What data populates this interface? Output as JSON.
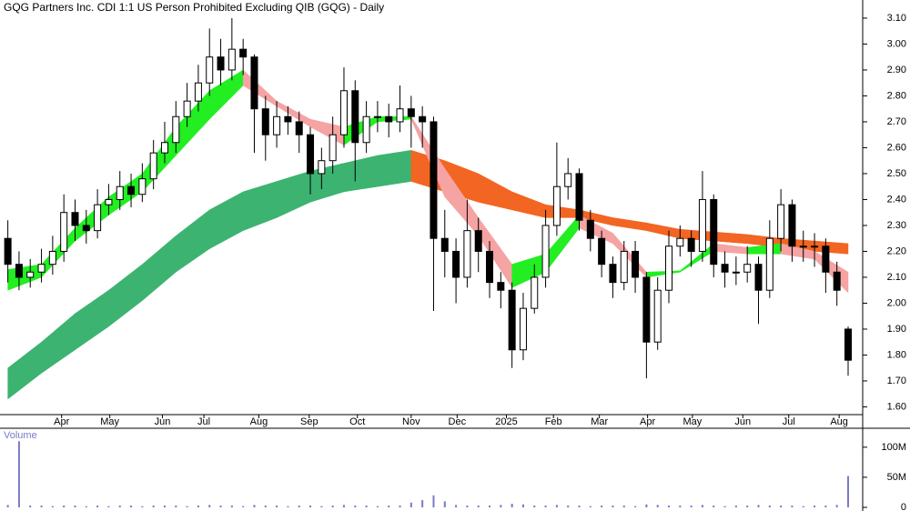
{
  "chart_data": [
    {
      "type": "candlestick",
      "title": "GQG Partners Inc. CDI 1:1 US Person Prohibited Excluding QIB (GQG) - Daily",
      "x": [
        0,
        1,
        2,
        3,
        4,
        5,
        6,
        7,
        8,
        9,
        10,
        11,
        12,
        13,
        14,
        15,
        16,
        17,
        18,
        19,
        20,
        21,
        22,
        23,
        24,
        25,
        26,
        27,
        28,
        29,
        30,
        31,
        32,
        33,
        34,
        35,
        36,
        37,
        38,
        39,
        40,
        41,
        42,
        43,
        44,
        45,
        46,
        47,
        48,
        49,
        50,
        51,
        52,
        53,
        54,
        55,
        56,
        57,
        58,
        59,
        60,
        61,
        62,
        63,
        64,
        65,
        66,
        67,
        68,
        69,
        70,
        71,
        72,
        73,
        74,
        75
      ],
      "open": [
        2.25,
        2.15,
        2.1,
        2.12,
        2.15,
        2.2,
        2.35,
        2.3,
        2.28,
        2.38,
        2.4,
        2.45,
        2.42,
        2.48,
        2.58,
        2.62,
        2.72,
        2.78,
        2.85,
        2.95,
        2.9,
        2.98,
        2.95,
        2.75,
        2.65,
        2.72,
        2.7,
        2.65,
        2.5,
        2.55,
        2.65,
        2.82,
        2.62,
        2.72,
        2.72,
        2.7,
        2.75,
        2.72,
        2.7,
        2.25,
        2.2,
        2.1,
        2.28,
        2.2,
        2.08,
        2.05,
        1.82,
        1.98,
        2.1,
        2.3,
        2.45,
        2.5,
        2.32,
        2.25,
        2.15,
        2.08,
        2.2,
        2.1,
        1.85,
        2.05,
        2.22,
        2.25,
        2.2,
        2.4,
        2.15,
        2.12,
        2.12,
        2.15,
        2.05,
        2.25,
        2.38,
        2.22,
        2.22,
        2.22,
        2.12,
        1.9
      ],
      "high": [
        2.32,
        2.2,
        2.17,
        2.21,
        2.26,
        2.42,
        2.4,
        2.36,
        2.44,
        2.46,
        2.51,
        2.5,
        2.54,
        2.63,
        2.7,
        2.78,
        2.85,
        2.92,
        3.06,
        3.02,
        3.1,
        3.02,
        2.96,
        2.8,
        2.78,
        2.76,
        2.74,
        2.68,
        2.6,
        2.72,
        2.91,
        2.86,
        2.78,
        2.78,
        2.77,
        2.84,
        2.8,
        2.76,
        2.72,
        2.36,
        2.25,
        2.4,
        2.33,
        2.24,
        2.12,
        2.08,
        2.04,
        2.15,
        2.36,
        2.62,
        2.56,
        2.52,
        2.36,
        2.28,
        2.18,
        2.24,
        2.24,
        2.12,
        2.1,
        2.28,
        2.3,
        2.28,
        2.51,
        2.42,
        2.2,
        2.18,
        2.22,
        2.18,
        2.32,
        2.44,
        2.4,
        2.28,
        2.27,
        2.25,
        2.16,
        1.91
      ],
      "low": [
        2.08,
        2.05,
        2.06,
        2.08,
        2.11,
        2.16,
        2.24,
        2.23,
        2.25,
        2.34,
        2.36,
        2.37,
        2.39,
        2.44,
        2.54,
        2.58,
        2.68,
        2.74,
        2.8,
        2.84,
        2.86,
        2.88,
        2.58,
        2.55,
        2.6,
        2.65,
        2.58,
        2.42,
        2.44,
        2.5,
        2.6,
        2.47,
        2.58,
        2.66,
        2.64,
        2.66,
        2.6,
        2.6,
        1.97,
        2.1,
        2.0,
        2.06,
        2.12,
        2.02,
        1.98,
        1.75,
        1.78,
        1.96,
        2.06,
        2.26,
        2.4,
        2.28,
        2.2,
        2.1,
        2.02,
        2.05,
        2.04,
        1.71,
        1.82,
        2.0,
        2.18,
        2.14,
        2.16,
        2.1,
        2.06,
        2.07,
        2.08,
        1.92,
        2.02,
        2.2,
        2.16,
        2.16,
        2.14,
        2.04,
        1.99,
        1.72
      ],
      "close": [
        2.15,
        2.1,
        2.12,
        2.15,
        2.2,
        2.35,
        2.3,
        2.28,
        2.38,
        2.4,
        2.45,
        2.42,
        2.48,
        2.58,
        2.62,
        2.72,
        2.78,
        2.85,
        2.95,
        2.9,
        2.98,
        2.95,
        2.75,
        2.65,
        2.72,
        2.7,
        2.65,
        2.5,
        2.55,
        2.65,
        2.82,
        2.62,
        2.72,
        2.72,
        2.7,
        2.75,
        2.72,
        2.7,
        2.25,
        2.2,
        2.1,
        2.28,
        2.2,
        2.08,
        2.05,
        1.82,
        1.98,
        2.1,
        2.3,
        2.45,
        2.5,
        2.32,
        2.25,
        2.15,
        2.08,
        2.2,
        2.1,
        1.85,
        2.05,
        2.22,
        2.25,
        2.2,
        2.4,
        2.15,
        2.12,
        2.12,
        2.15,
        2.05,
        2.25,
        2.38,
        2.22,
        2.22,
        2.22,
        2.12,
        2.05,
        1.78
      ],
      "bands": [
        {
          "x": [
            0,
            3,
            6,
            9,
            12,
            15,
            18,
            21,
            24,
            27,
            30,
            33,
            36,
            39,
            42,
            45,
            48,
            51,
            54,
            57,
            60,
            63,
            66,
            69,
            72,
            75
          ],
          "upper": [
            1.75,
            1.85,
            1.96,
            2.05,
            2.15,
            2.26,
            2.36,
            2.43,
            2.47,
            2.51,
            2.54,
            2.57,
            2.59,
            2.55,
            2.5,
            2.43,
            2.38,
            2.36,
            2.33,
            2.31,
            2.285,
            2.275,
            2.265,
            2.25,
            2.24,
            2.23
          ],
          "lower": [
            1.63,
            1.73,
            1.82,
            1.91,
            2.01,
            2.12,
            2.21,
            2.28,
            2.33,
            2.39,
            2.43,
            2.45,
            2.47,
            2.43,
            2.39,
            2.36,
            2.33,
            2.33,
            2.3,
            2.28,
            2.25,
            2.24,
            2.23,
            2.215,
            2.2,
            2.19
          ],
          "up_color": "#3cb371",
          "down_color": "#f26522"
        },
        {
          "x": [
            0,
            3,
            6,
            9,
            12,
            15,
            18,
            21,
            24,
            27,
            30,
            33,
            36,
            39,
            42,
            45,
            48,
            51,
            54,
            57,
            60,
            63,
            66,
            69,
            72,
            75
          ],
          "upper": [
            2.13,
            2.15,
            2.29,
            2.41,
            2.5,
            2.68,
            2.82,
            2.9,
            2.78,
            2.71,
            2.68,
            2.72,
            2.72,
            2.52,
            2.33,
            2.15,
            2.19,
            2.34,
            2.27,
            2.12,
            2.125,
            2.23,
            2.215,
            2.23,
            2.2,
            2.12
          ],
          "lower": [
            2.05,
            2.1,
            2.24,
            2.34,
            2.43,
            2.57,
            2.71,
            2.84,
            2.76,
            2.68,
            2.61,
            2.7,
            2.71,
            2.41,
            2.26,
            2.06,
            2.12,
            2.29,
            2.23,
            2.1,
            2.12,
            2.2,
            2.19,
            2.19,
            2.17,
            2.04
          ],
          "up_color": "#22ee22",
          "down_color": "#f5a3a3"
        }
      ],
      "xlim": [
        -0.7,
        76.3
      ],
      "xticks": [
        {
          "value": 4.8,
          "label": "Apr"
        },
        {
          "value": 9.1,
          "label": "May"
        },
        {
          "value": 13.8,
          "label": "Jun"
        },
        {
          "value": 17.5,
          "label": "Jul"
        },
        {
          "value": 22.4,
          "label": "Aug"
        },
        {
          "value": 26.9,
          "label": "Sep"
        },
        {
          "value": 31.2,
          "label": "Oct"
        },
        {
          "value": 36.0,
          "label": "Nov"
        },
        {
          "value": 40.1,
          "label": "Dec"
        },
        {
          "value": 44.5,
          "label": "2025"
        },
        {
          "value": 48.7,
          "label": "Feb"
        },
        {
          "value": 52.8,
          "label": "Mar"
        },
        {
          "value": 57.1,
          "label": "Apr"
        },
        {
          "value": 61.1,
          "label": "May"
        },
        {
          "value": 65.6,
          "label": "Jun"
        },
        {
          "value": 69.7,
          "label": "Jul"
        },
        {
          "value": 74.2,
          "label": "Aug"
        }
      ],
      "ylim": [
        1.57,
        3.17
      ],
      "yticks": [
        {
          "value": 1.6,
          "label": "1.60"
        },
        {
          "value": 1.7,
          "label": "1.70"
        },
        {
          "value": 1.8,
          "label": "1.80"
        },
        {
          "value": 1.9,
          "label": "1.90"
        },
        {
          "value": 2.0,
          "label": "2.00"
        },
        {
          "value": 2.1,
          "label": "2.10"
        },
        {
          "value": 2.2,
          "label": "2.20"
        },
        {
          "value": 2.3,
          "label": "2.30"
        },
        {
          "value": 2.4,
          "label": "2.40"
        },
        {
          "value": 2.5,
          "label": "2.50"
        },
        {
          "value": 2.6,
          "label": "2.60"
        },
        {
          "value": 2.7,
          "label": "2.70"
        },
        {
          "value": 2.8,
          "label": "2.80"
        },
        {
          "value": 2.9,
          "label": "2.90"
        },
        {
          "value": 3.0,
          "label": "3.00"
        },
        {
          "value": 3.1,
          "label": "3.10"
        }
      ]
    },
    {
      "type": "bar",
      "title": "Volume",
      "color": "#7a7ac8",
      "x": [
        0,
        1,
        2,
        3,
        4,
        5,
        6,
        7,
        8,
        9,
        10,
        11,
        12,
        13,
        14,
        15,
        16,
        17,
        18,
        19,
        20,
        21,
        22,
        23,
        24,
        25,
        26,
        27,
        28,
        29,
        30,
        31,
        32,
        33,
        34,
        35,
        36,
        37,
        38,
        39,
        40,
        41,
        42,
        43,
        44,
        45,
        46,
        47,
        48,
        49,
        50,
        51,
        52,
        53,
        54,
        55,
        56,
        57,
        58,
        59,
        60,
        61,
        62,
        63,
        64,
        65,
        66,
        67,
        68,
        69,
        70,
        71,
        72,
        73,
        74,
        75
      ],
      "values": [
        4,
        110,
        3,
        3,
        2,
        3,
        3,
        2,
        3,
        2,
        3,
        3,
        2,
        3,
        3,
        3,
        2,
        3,
        4,
        3,
        3,
        2,
        4,
        3,
        3,
        2,
        3,
        3,
        2,
        3,
        4,
        3,
        3,
        2,
        3,
        3,
        8,
        12,
        20,
        10,
        4,
        3,
        3,
        3,
        4,
        6,
        5,
        3,
        3,
        4,
        3,
        3,
        2,
        3,
        3,
        3,
        2,
        5,
        4,
        3,
        3,
        3,
        4,
        3,
        2,
        3,
        3,
        4,
        3,
        3,
        3,
        2,
        3,
        3,
        4,
        52
      ],
      "xlim": [
        -0.7,
        76.3
      ],
      "ylim": [
        0,
        130
      ],
      "yticks": [
        0,
        {
          "value": 50,
          "label": "50M"
        },
        {
          "value": 100,
          "label": "100M"
        }
      ]
    }
  ]
}
